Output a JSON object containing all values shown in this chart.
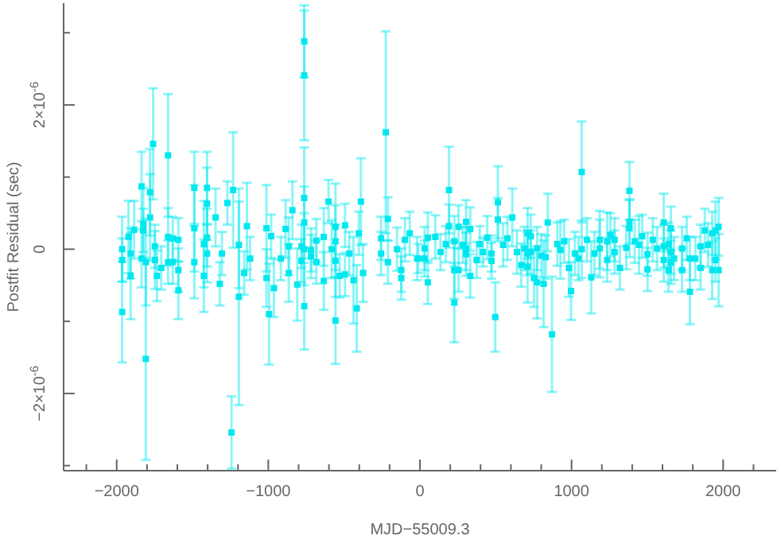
{
  "chart_data": {
    "type": "scatter",
    "xlabel": "MJD−55009.3",
    "ylabel": "Postfit Residual (sec)",
    "color": "#00e8ef",
    "marker": "square",
    "grid": false,
    "xlim": [
      -2350,
      2350
    ],
    "xticks": [
      {
        "value": -2200,
        "label": null
      },
      {
        "value": -2000,
        "label": "−2000"
      },
      {
        "value": -1800,
        "label": null
      },
      {
        "value": -1600,
        "label": null
      },
      {
        "value": -1400,
        "label": null
      },
      {
        "value": -1200,
        "label": null
      },
      {
        "value": -1000,
        "label": "−1000"
      },
      {
        "value": -800,
        "label": null
      },
      {
        "value": -600,
        "label": null
      },
      {
        "value": -400,
        "label": null
      },
      {
        "value": -200,
        "label": null
      },
      0,
      {
        "value": 200,
        "label": null
      },
      {
        "value": 400,
        "label": null
      },
      {
        "value": 600,
        "label": null
      },
      {
        "value": 800,
        "label": null
      },
      1000,
      {
        "value": 1200,
        "label": null
      },
      {
        "value": 1400,
        "label": null
      },
      {
        "value": 1600,
        "label": null
      },
      {
        "value": 1800,
        "label": null
      },
      2000,
      {
        "value": 2200,
        "label": null
      }
    ],
    "ylim": [
      -3.07e-06,
      3.41e-06
    ],
    "yticks": [
      {
        "value": -3e-06,
        "label": null
      },
      {
        "value": -2e-06,
        "label": "−2×10$^{-6}$"
      },
      {
        "value": -1e-06,
        "label": null
      },
      0,
      {
        "value": 1e-06,
        "label": null
      },
      {
        "value": 2e-06,
        "label": "2×10$^{-6}$"
      },
      {
        "value": 3e-06,
        "label": null
      }
    ],
    "x": [
      -1964,
      -1964,
      -1964,
      -1922,
      -1908,
      -1908,
      -1885,
      -1836,
      -1836,
      -1825,
      -1825,
      -1808,
      -1808,
      -1780,
      -1780,
      -1760,
      -1748,
      -1748,
      -1734,
      -1706,
      -1661,
      -1661,
      -1661,
      -1630,
      -1630,
      -1593,
      -1593,
      -1593,
      -1488,
      -1488,
      -1488,
      -1425,
      -1425,
      -1404,
      -1404,
      -1404,
      -1404,
      -1348,
      -1320,
      -1306,
      -1270,
      -1243,
      -1232,
      -1194,
      -1194,
      -1159,
      -1141,
      -1120,
      -1012,
      -1012,
      -995,
      -981,
      -963,
      -917,
      -886,
      -865,
      -865,
      -841,
      -809,
      -781,
      -781,
      -763,
      -763,
      -763,
      -763,
      -763,
      -763,
      -718,
      -718,
      -683,
      -683,
      -634,
      -634,
      -603,
      -582,
      -557,
      -557,
      -557,
      -557,
      -529,
      -494,
      -494,
      -466,
      -438,
      -417,
      -403,
      -389,
      -375,
      -256,
      -256,
      -225,
      -211,
      -211,
      -151,
      -123,
      -123,
      -99,
      -67,
      -18,
      -11,
      31,
      31,
      52,
      52,
      101,
      136,
      171,
      192,
      192,
      227,
      227,
      227,
      255,
      255,
      283,
      304,
      304,
      304,
      332,
      332,
      374,
      395,
      416,
      444,
      472,
      472,
      497,
      514,
      514,
      549,
      577,
      609,
      640,
      668,
      689,
      710,
      710,
      710,
      731,
      731,
      752,
      773,
      773,
      801,
      816,
      830,
      843,
      871,
      906,
      927,
      952,
      983,
      997,
      1022,
      1046,
      1067,
      1067,
      1102,
      1130,
      1151,
      1186,
      1186,
      1235,
      1235,
      1256,
      1284,
      1284,
      1319,
      1361,
      1382,
      1382,
      1382,
      1417,
      1445,
      1466,
      1501,
      1501,
      1536,
      1564,
      1608,
      1608,
      1608,
      1640,
      1640,
      1655,
      1655,
      1655,
      1676,
      1729,
      1729,
      1760,
      1781,
      1781,
      1816,
      1851,
      1851,
      1879,
      1900,
      1928,
      1928,
      1949,
      1949,
      1970,
      1970
    ],
    "values": [
      0,
      -1.5e-07,
      -8.7e-07,
      1.7e-07,
      -6e-08,
      -3.7e-07,
      2.7e-07,
      8.7e-07,
      -1.3e-07,
      3.5e-07,
      2.6e-07,
      -1.52e-06,
      -1.8e-07,
      4.4e-07,
      7.9e-07,
      1.46e-06,
      4e-08,
      -1.5e-07,
      -3.7e-07,
      -2.6e-07,
      1.3e-06,
      1.7e-07,
      -1.8e-07,
      1.5e-07,
      -1.8e-07,
      1.3e-07,
      -2.9e-07,
      -5.7e-07,
      8.5e-07,
      2.9e-07,
      -1.8e-07,
      7e-08,
      -3.7e-07,
      8.5e-07,
      6.3e-07,
      1.6e-07,
      -6e-08,
      4.4e-07,
      -4.8e-07,
      -6e-08,
      6.4e-07,
      -2.54e-06,
      8.2e-07,
      6e-08,
      -6.6e-07,
      -3.3e-07,
      3.2e-07,
      -1.3e-07,
      2.9e-07,
      -4e-07,
      -9e-07,
      1.8e-07,
      -5.4e-07,
      -1.3e-07,
      2.8e-07,
      4e-08,
      -3.3e-07,
      5.4e-07,
      -4.9e-07,
      -1.6e-07,
      4e-08,
      2.88e-06,
      2.41e-06,
      7.1e-07,
      3.7e-07,
      -7.9e-07,
      0,
      -1e-08,
      -1e-07,
      -1.8e-07,
      1.2e-07,
      1.7e-07,
      -4.4e-07,
      6.6e-07,
      0,
      -9.9e-07,
      1.1e-07,
      -1.6e-07,
      3.1e-07,
      -3.7e-07,
      3.3e-07,
      -3.5e-07,
      -6e-08,
      -4.3e-07,
      -8.2e-07,
      2.2e-07,
      6.6e-07,
      -3.3e-07,
      1.5e-07,
      -6e-08,
      1.62e-06,
      4.2e-07,
      -1.8e-07,
      0,
      -2.9e-07,
      -4e-07,
      1.3e-07,
      2.2e-07,
      -1.3e-07,
      -1.3e-07,
      1e-08,
      -1.3e-07,
      1.6e-07,
      -4.6e-07,
      1.7e-07,
      -4e-08,
      7e-08,
      8.2e-07,
      3.2e-07,
      1.1e-07,
      -2.9e-07,
      -7.4e-07,
      -2.9e-07,
      3.1e-07,
      6e-08,
      3.8e-07,
      1e-08,
      -7e-08,
      2.8e-07,
      -3.7e-07,
      -1.5e-07,
      7e-08,
      -4e-08,
      1.6e-07,
      -6e-08,
      -1.6e-07,
      -9.4e-07,
      6.5e-07,
      4.1e-07,
      6e-08,
      1.5e-07,
      4.4e-07,
      -4e-08,
      -2.2e-07,
      1e-08,
      2.2e-07,
      -6e-08,
      -2.4e-07,
      1.8e-07,
      -4e-08,
      -4e-07,
      -4.6e-07,
      1e-08,
      -9e-08,
      -4.8e-07,
      -1.1e-07,
      3.7e-07,
      -1.18e-06,
      7e-08,
      -1e-08,
      1.1e-07,
      -2.6e-07,
      -5.8e-07,
      -6e-08,
      -1.3e-07,
      1.07e-06,
      0,
      1.3e-07,
      -3.9e-07,
      -6e-08,
      1e-08,
      1.3e-07,
      -1.5e-07,
      1.1e-07,
      2e-07,
      -4e-08,
      1.3e-07,
      -2.6e-07,
      2e-08,
      8.1e-07,
      2.9e-07,
      3.8e-07,
      1.1e-07,
      6e-08,
      1.8e-07,
      -2.8e-07,
      -7e-08,
      1.3e-07,
      1e-08,
      3.7e-07,
      4e-08,
      -1.5e-07,
      -2.9e-07,
      7e-08,
      2.9e-07,
      -4e-08,
      -1.8e-07,
      -1.3e-07,
      -2.9e-07,
      1e-08,
      1.5e-07,
      -5.9e-07,
      -1.3e-07,
      -1.3e-07,
      -2.6e-07,
      4e-08,
      2.6e-07,
      6e-08,
      -2.9e-07,
      2.2e-07,
      -1.5e-07,
      2.6e-07,
      3.1e-07,
      -2.9e-07
    ],
    "errors": [
      4.5e-07,
      3e-07,
      7e-07,
      5e-07,
      3.5e-07,
      6e-07,
      4e-07,
      4.8e-07,
      4e-07,
      5e-07,
      3e-07,
      1.4e-06,
      6e-07,
      6e-07,
      6e-07,
      7.7e-07,
      3e-07,
      4e-07,
      3.5e-07,
      3e-07,
      8.5e-07,
      4e-07,
      3e-07,
      3e-07,
      3e-07,
      3e-07,
      3e-07,
      4e-07,
      5e-07,
      6e-07,
      5e-07,
      6e-07,
      5e-07,
      5e-07,
      5e-07,
      4e-07,
      4e-07,
      4e-07,
      3e-07,
      3e-07,
      3e-07,
      5e-07,
      8e-07,
      6e-07,
      1.5e-06,
      3e-07,
      6e-07,
      3e-07,
      6e-07,
      4e-07,
      7e-07,
      3e-07,
      4e-07,
      3e-07,
      4e-07,
      4e-07,
      4e-07,
      4e-07,
      5e-07,
      3e-07,
      3e-07,
      5e-07,
      9e-07,
      7e-07,
      5e-07,
      6e-07,
      5e-07,
      3e-07,
      3e-07,
      3e-07,
      3e-07,
      4e-07,
      4e-07,
      3e-07,
      4e-07,
      6e-07,
      5e-07,
      5e-07,
      6e-07,
      3e-07,
      3e-07,
      3e-07,
      3e-07,
      6e-07,
      6e-07,
      3e-07,
      6e-07,
      4e-07,
      3e-07,
      3e-07,
      1.4e-06,
      3e-07,
      3e-07,
      3e-07,
      3e-07,
      3e-07,
      3e-07,
      3e-07,
      3e-07,
      2e-07,
      3e-07,
      2.5e-07,
      3.5e-07,
      3e-07,
      3e-07,
      2.5e-07,
      2.5e-07,
      6e-07,
      3e-07,
      3.5e-07,
      4e-07,
      5.5e-07,
      3e-07,
      3e-07,
      2.5e-07,
      3e-07,
      3e-07,
      3e-07,
      3e-07,
      3e-07,
      2.5e-07,
      2.5e-07,
      2e-07,
      3e-07,
      2.5e-07,
      2.5e-07,
      4.8e-07,
      5e-07,
      3e-07,
      3e-07,
      3e-07,
      4e-07,
      3e-07,
      3e-07,
      3e-07,
      3.5e-07,
      3e-07,
      5e-07,
      3e-07,
      3e-07,
      4e-07,
      5e-07,
      3e-07,
      3e-07,
      6e-07,
      3e-07,
      4e-07,
      8e-07,
      3e-07,
      4e-07,
      3e-07,
      4e-07,
      4e-07,
      3e-07,
      3e-07,
      7e-07,
      4e-07,
      3e-07,
      5e-07,
      3e-07,
      4e-07,
      4e-07,
      3e-07,
      4e-07,
      3e-07,
      3e-07,
      3e-07,
      3e-07,
      3e-07,
      4e-07,
      4e-07,
      3e-07,
      3e-07,
      4e-07,
      3e-07,
      3e-07,
      3e-07,
      3e-07,
      3e-07,
      4e-07,
      3e-07,
      3e-07,
      3e-07,
      3e-07,
      3e-07,
      3e-07,
      3e-07,
      3e-07,
      3e-07,
      3e-07,
      3e-07,
      4.5e-07,
      3e-07,
      3e-07,
      3e-07,
      3e-07,
      3e-07,
      3e-07,
      4e-07,
      3e-07,
      3e-07,
      4e-07,
      4e-07,
      5e-07
    ]
  }
}
